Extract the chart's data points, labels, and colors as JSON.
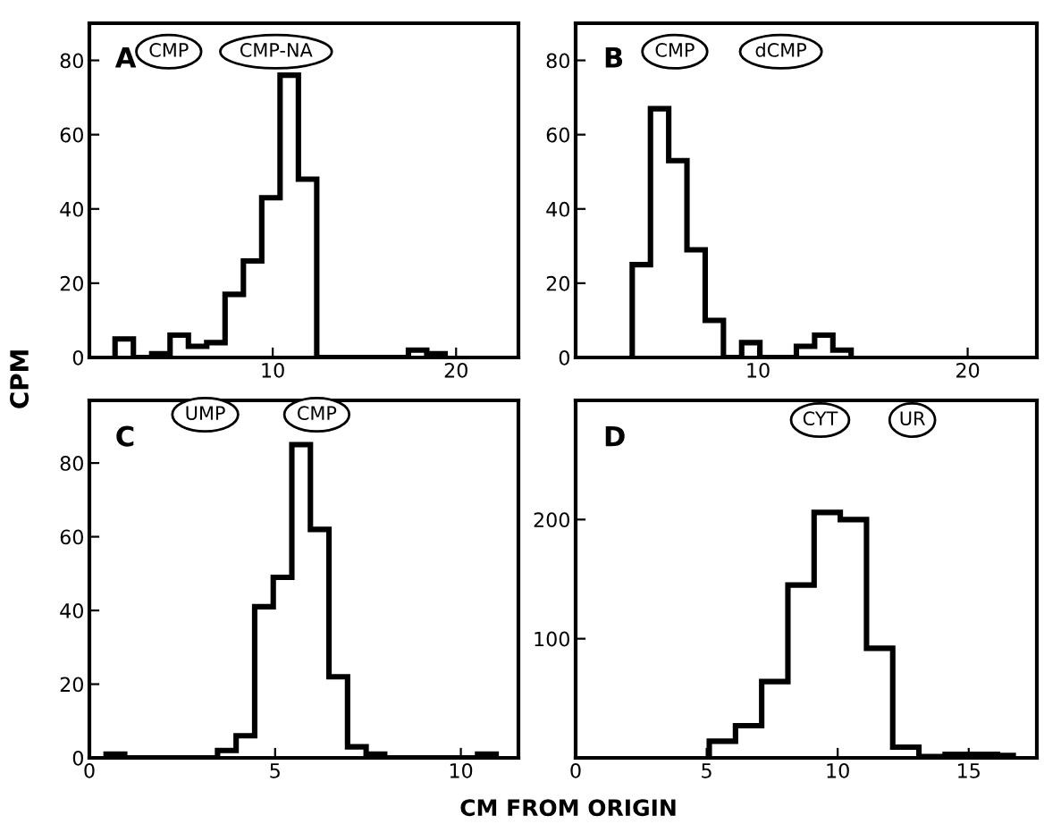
{
  "chart_data": [
    {
      "type": "histogram",
      "color": "#000000",
      "bins": [
        1.4,
        2.4,
        3.4,
        4.4,
        5.4,
        6.4,
        7.4,
        8.4,
        9.4,
        10.4,
        11.4,
        12.4,
        13.4,
        14.4,
        15.4,
        16.4,
        17.4,
        18.4,
        19.4
      ],
      "values": [
        5,
        0,
        1,
        6,
        3,
        4,
        17,
        26,
        43,
        76,
        48,
        0,
        0,
        0,
        0,
        0,
        2,
        1
      ],
      "xlim": [
        0,
        23.4
      ],
      "ylim": [
        0,
        90
      ],
      "xticks": [
        10,
        20
      ],
      "yticks": [
        0,
        20,
        40,
        60,
        80
      ],
      "grid": false,
      "legend": false,
      "annotations": [
        "A",
        "CMP",
        "CMP-NA"
      ]
    },
    {
      "type": "histogram",
      "color": "#000000",
      "bins": [
        4.0,
        4.87,
        5.74,
        6.61,
        7.48,
        8.35,
        9.22,
        10.09,
        10.96,
        11.83,
        12.7,
        13.57,
        14.44
      ],
      "values": [
        25,
        67,
        53,
        29,
        10,
        0,
        4,
        0,
        0,
        3,
        6,
        2
      ],
      "xlim": [
        1.3,
        23.3
      ],
      "ylim": [
        0,
        90
      ],
      "xticks": [
        10,
        20
      ],
      "yticks": [
        0,
        20,
        40,
        60,
        80
      ],
      "grid": false,
      "legend": false,
      "annotations": [
        "B",
        "CMP",
        "dCMP"
      ]
    },
    {
      "type": "histogram",
      "color": "#000000",
      "bins": [
        0.45,
        0.95,
        1.45,
        1.95,
        2.45,
        2.95,
        3.45,
        3.95,
        4.45,
        4.95,
        5.45,
        5.95,
        6.45,
        6.95,
        7.45,
        7.95,
        8.45,
        8.95,
        9.45,
        9.95,
        10.45,
        10.95
      ],
      "values": [
        1,
        0,
        0,
        0,
        0,
        0,
        2,
        6,
        41,
        49,
        85,
        62,
        22,
        3,
        1,
        0,
        0,
        0,
        0,
        0,
        1
      ],
      "xlim": [
        0,
        11.55
      ],
      "ylim": [
        0,
        97
      ],
      "xticks": [
        0,
        5,
        10
      ],
      "yticks": [
        0,
        20,
        40,
        60,
        80
      ],
      "grid": false,
      "legend": false,
      "xlabel": "CM FROM ORIGIN",
      "ylabel": "CPM",
      "annotations": [
        "C",
        "UMP",
        "CMP"
      ]
    },
    {
      "type": "histogram",
      "color": "#000000",
      "bins": [
        5.1,
        6.1,
        7.1,
        8.1,
        9.1,
        10.1,
        11.1,
        12.1,
        13.1,
        14.1,
        15.1,
        16.1,
        16.7
      ],
      "values": [
        14,
        27,
        64,
        145,
        206,
        200,
        92,
        9,
        1,
        3,
        3,
        2
      ],
      "xlim": [
        0,
        17.6
      ],
      "ylim": [
        0,
        300
      ],
      "xticks": [
        0,
        5,
        10,
        15
      ],
      "yticks": [
        100,
        200
      ],
      "grid": false,
      "legend": false,
      "annotations": [
        "D",
        "CYT",
        "UR"
      ]
    }
  ]
}
